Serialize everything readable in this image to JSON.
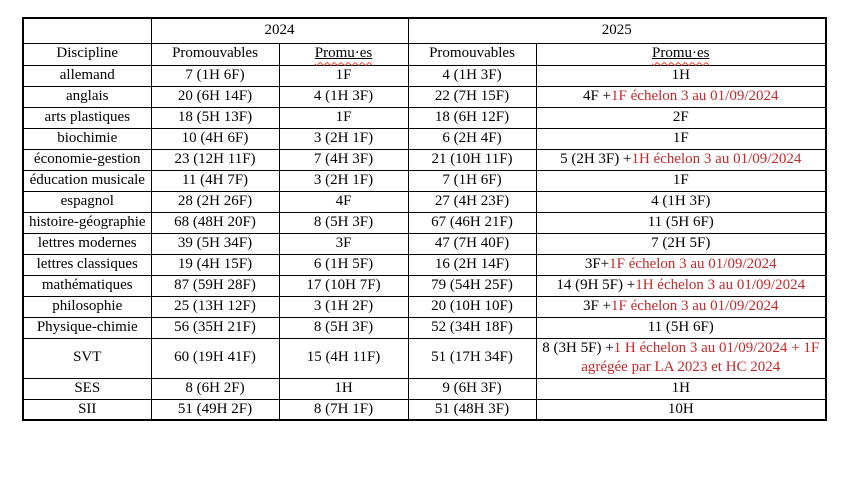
{
  "colors": {
    "text": "#000000",
    "red_annotation": "#c22a2a",
    "spellcheck_squiggle": "#e8402a",
    "border": "#000000",
    "background": "#ffffff"
  },
  "table": {
    "year_headers": [
      "2024",
      "2025"
    ],
    "column_headers": {
      "discipline": "Discipline",
      "promouvables_2024": "Promouvables",
      "promues_2024": "Promu·es",
      "promouvables_2025": "Promouvables",
      "promues_2025": "Promu·es"
    },
    "rows": [
      {
        "discipline": "allemand",
        "promouvables_2024": "7 (1H 6F)",
        "promues_2024": "1F",
        "promouvables_2025": "4 (1H 3F)",
        "promues_2025": {
          "text": "1H",
          "red_text": ""
        }
      },
      {
        "discipline": "anglais",
        "promouvables_2024": "20 (6H 14F)",
        "promues_2024": "4 (1H 3F)",
        "promouvables_2025": "22 (7H 15F)",
        "promues_2025": {
          "text": "4F +",
          "red_text": "1F échelon 3 au 01/09/2024"
        }
      },
      {
        "discipline": "arts plastiques",
        "promouvables_2024": "18 (5H 13F)",
        "promues_2024": "1F",
        "promouvables_2025": "18 (6H 12F)",
        "promues_2025": {
          "text": "2F",
          "red_text": ""
        }
      },
      {
        "discipline": "biochimie",
        "promouvables_2024": "10 (4H 6F)",
        "promues_2024": "3 (2H 1F)",
        "promouvables_2025": "6 (2H 4F)",
        "promues_2025": {
          "text": "1F",
          "red_text": ""
        }
      },
      {
        "discipline": "économie-gestion",
        "promouvables_2024": "23 (12H 11F)",
        "promues_2024": "7 (4H 3F)",
        "promouvables_2025": "21 (10H 11F)",
        "promues_2025": {
          "text": "5 (2H 3F) +",
          "red_text": "1H échelon 3 au 01/09/2024"
        }
      },
      {
        "discipline": "éducation musicale",
        "promouvables_2024": "11 (4H 7F)",
        "promues_2024": "3 (2H 1F)",
        "promouvables_2025": "7 (1H 6F)",
        "promues_2025": {
          "text": "1F",
          "red_text": ""
        }
      },
      {
        "discipline": "espagnol",
        "promouvables_2024": "28 (2H 26F)",
        "promues_2024": "4F",
        "promouvables_2025": "27 (4H 23F)",
        "promues_2025": {
          "text": "4 (1H 3F)",
          "red_text": ""
        }
      },
      {
        "discipline": "histoire-géographie",
        "promouvables_2024": "68 (48H 20F)",
        "promues_2024": "8 (5H 3F)",
        "promouvables_2025": "67 (46H 21F)",
        "promues_2025": {
          "text": "11 (5H 6F)",
          "red_text": ""
        }
      },
      {
        "discipline": "lettres modernes",
        "promouvables_2024": "39 (5H 34F)",
        "promues_2024": "3F",
        "promouvables_2025": "47 (7H 40F)",
        "promues_2025": {
          "text": "7 (2H 5F)",
          "red_text": ""
        }
      },
      {
        "discipline": "lettres classiques",
        "promouvables_2024": "19 (4H 15F)",
        "promues_2024": "6 (1H 5F)",
        "promouvables_2025": "16 (2H 14F)",
        "promues_2025": {
          "text": "3F+",
          "red_text": "1F échelon 3 au 01/09/2024"
        }
      },
      {
        "discipline": "mathématiques",
        "promouvables_2024": "87 (59H 28F)",
        "promues_2024": "17 (10H 7F)",
        "promouvables_2025": "79 (54H 25F)",
        "promues_2025": {
          "text": "14 (9H 5F) +",
          "red_text": "1H échelon 3 au 01/09/2024"
        }
      },
      {
        "discipline": "philosophie",
        "promouvables_2024": "25 (13H 12F)",
        "promues_2024": "3 (1H 2F)",
        "promouvables_2025": "20 (10H 10F)",
        "promues_2025": {
          "text": "3F +",
          "red_text": "1F échelon 3 au 01/09/2024"
        }
      },
      {
        "discipline": "Physique-chimie",
        "promouvables_2024": "56 (35H 21F)",
        "promues_2024": "8 (5H 3F)",
        "promouvables_2025": "52 (34H 18F)",
        "promues_2025": {
          "text": "11 (5H 6F)",
          "red_text": ""
        }
      },
      {
        "discipline": "SVT",
        "promouvables_2024": "60 (19H 41F)",
        "promues_2024": "15 (4H 11F)",
        "promouvables_2025": "51 (17H 34F)",
        "promues_2025": {
          "text": "8 (3H 5F) +",
          "red_text": "1 H échelon 3 au 01/09/2024 + 1F agrégée par LA 2023 et HC 2024"
        }
      },
      {
        "discipline": "SES",
        "promouvables_2024": "8 (6H 2F)",
        "promues_2024": "1H",
        "promouvables_2025": "9 (6H 3F)",
        "promues_2025": {
          "text": "1H",
          "red_text": ""
        }
      },
      {
        "discipline": "SII",
        "promouvables_2024": "51 (49H 2F)",
        "promues_2024": "8 (7H 1F)",
        "promouvables_2025": "51 (48H 3F)",
        "promues_2025": {
          "text": "10H",
          "red_text": ""
        }
      }
    ]
  }
}
